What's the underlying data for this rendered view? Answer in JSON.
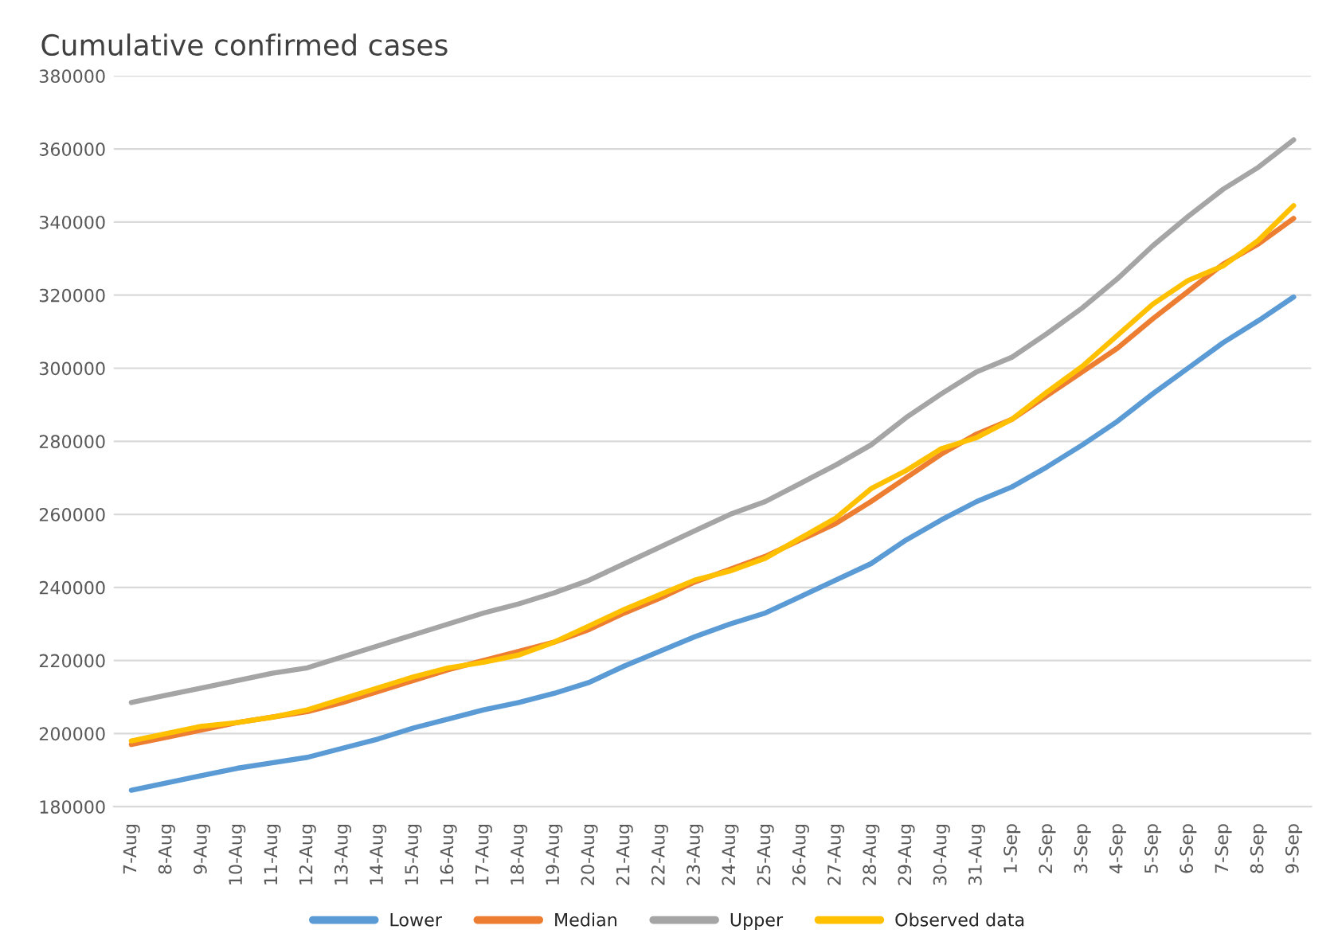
{
  "chart_data": {
    "type": "line",
    "title": "Cumulative confirmed cases",
    "categories": [
      "7-Aug",
      "8-Aug",
      "9-Aug",
      "10-Aug",
      "11-Aug",
      "12-Aug",
      "13-Aug",
      "14-Aug",
      "15-Aug",
      "16-Aug",
      "17-Aug",
      "18-Aug",
      "19-Aug",
      "20-Aug",
      "21-Aug",
      "22-Aug",
      "23-Aug",
      "24-Aug",
      "25-Aug",
      "26-Aug",
      "27-Aug",
      "28-Aug",
      "29-Aug",
      "30-Aug",
      "31-Aug",
      "1-Sep",
      "2-Sep",
      "3-Sep",
      "4-Sep",
      "5-Sep",
      "6-Sep",
      "7-Sep",
      "8-Sep",
      "9-Sep"
    ],
    "series": [
      {
        "name": "Lower",
        "color": "#5b9bd5",
        "values": [
          184500,
          186500,
          188500,
          190500,
          192000,
          193500,
          196000,
          198500,
          201500,
          204000,
          206500,
          208500,
          211000,
          214000,
          218500,
          222500,
          226500,
          230000,
          233000,
          237500,
          242000,
          246500,
          253000,
          258500,
          263500,
          267500,
          273000,
          279000,
          285500,
          293000,
          300000,
          307000,
          313000,
          319500
        ]
      },
      {
        "name": "Median",
        "color": "#ed7d31",
        "values": [
          197000,
          199000,
          201000,
          203000,
          204500,
          206000,
          208500,
          211500,
          214500,
          217500,
          220000,
          222500,
          225000,
          228500,
          233000,
          237000,
          241500,
          245000,
          248500,
          253000,
          257500,
          263500,
          270000,
          276500,
          282000,
          286000,
          292500,
          299000,
          305500,
          313500,
          321000,
          328500,
          334000,
          341000
        ]
      },
      {
        "name": "Upper",
        "color": "#a5a5a5",
        "values": [
          208500,
          210500,
          212500,
          214500,
          216500,
          218000,
          221000,
          224000,
          227000,
          230000,
          233000,
          235500,
          238500,
          242000,
          246500,
          251000,
          255500,
          260000,
          263500,
          268500,
          273500,
          279000,
          286500,
          293000,
          299000,
          303000,
          309500,
          316500,
          324500,
          333500,
          341500,
          349000,
          355000,
          362500
        ]
      },
      {
        "name": "Observed data",
        "color": "#ffc000",
        "values": [
          198000,
          200000,
          202000,
          203000,
          204500,
          206500,
          209500,
          212500,
          215500,
          218000,
          219500,
          221500,
          225000,
          229500,
          234000,
          238000,
          242000,
          244500,
          248000,
          253500,
          259000,
          267000,
          272000,
          278000,
          281000,
          286000,
          293500,
          300500,
          309000,
          317500,
          324000,
          328000,
          335000,
          344500
        ]
      }
    ],
    "ylim": [
      180000,
      380000
    ],
    "yticks": [
      180000,
      200000,
      220000,
      240000,
      260000,
      280000,
      300000,
      320000,
      340000,
      360000,
      380000
    ],
    "grid": "y",
    "legend": "bottom",
    "marker": "none",
    "line_style": "solid"
  }
}
